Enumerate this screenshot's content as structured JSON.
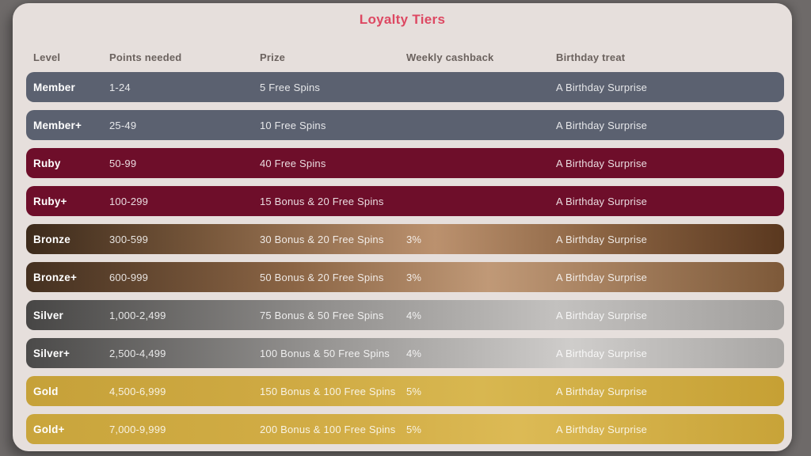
{
  "title": "Loyalty Tiers",
  "colors": {
    "background": "#6e6a69",
    "panel": "#e6dfdc",
    "title_accent": "#dd4862",
    "header_text": "#6b625e",
    "level_text": "#ffffff",
    "row_text": "#f2ece9"
  },
  "themes": {
    "member": {
      "background": "#5b6170"
    },
    "ruby": {
      "background": "#6e0e2a"
    },
    "bronze": {
      "background": "linear-gradient(90deg, #3c2a1b 0%, #7b5a3d 25%, #bb916e 54%, #8a6342 76%, #5a381f 100%)"
    },
    "bronze-plus": {
      "background": "linear-gradient(90deg, #443020 0%, #8a6444 35%, #c09977 61%, #7d5939 100%)"
    },
    "silver": {
      "background": "linear-gradient(90deg, #474645 0%, #8f8d8b 38%, #c3c1bf 70%, #a19f9d 100%)"
    },
    "silver-plus": {
      "background": "linear-gradient(90deg, #4b4a49 0%, #989694 40%, #cfcdcb 72%, #a8a6a4 100%)"
    },
    "gold": {
      "background": "linear-gradient(90deg, #c6a139 0%, #cfaa43 35%, #d8b750 60%, #c6a034 100%)"
    },
    "gold-plus": {
      "background": "linear-gradient(90deg, #c9a53c 0%, #d3ae47 45%, #dcba55 65%, #c8a338 100%)"
    }
  },
  "table": {
    "headers": [
      "Level",
      "Points needed",
      "Prize",
      "Weekly cashback",
      "Birthday treat"
    ],
    "rows": [
      {
        "level": "Member",
        "points": "1-24",
        "prize": "5 Free Spins",
        "cashback": "",
        "birthday": "A Birthday Surprise",
        "theme": "member"
      },
      {
        "level": "Member+",
        "points": "25-49",
        "prize": "10 Free Spins",
        "cashback": "",
        "birthday": "A Birthday Surprise",
        "theme": "member"
      },
      {
        "level": "Ruby",
        "points": "50-99",
        "prize": "40 Free Spins",
        "cashback": "",
        "birthday": "A Birthday Surprise",
        "theme": "ruby"
      },
      {
        "level": "Ruby+",
        "points": "100-299",
        "prize": "15 Bonus & 20 Free Spins",
        "cashback": "",
        "birthday": "A Birthday Surprise",
        "theme": "ruby"
      },
      {
        "level": "Bronze",
        "points": "300-599",
        "prize": "30 Bonus & 20 Free Spins",
        "cashback": "3%",
        "birthday": "A Birthday Surprise",
        "theme": "bronze"
      },
      {
        "level": "Bronze+",
        "points": "600-999",
        "prize": "50 Bonus & 20 Free Spins",
        "cashback": "3%",
        "birthday": "A Birthday Surprise",
        "theme": "bronze-plus"
      },
      {
        "level": "Silver",
        "points": "1,000-2,499",
        "prize": "75 Bonus & 50 Free Spins",
        "cashback": "4%",
        "birthday": "A Birthday Surprise",
        "theme": "silver"
      },
      {
        "level": "Silver+",
        "points": "2,500-4,499",
        "prize": "100 Bonus & 50 Free Spins",
        "cashback": "4%",
        "birthday": "A Birthday Surprise",
        "theme": "silver-plus"
      },
      {
        "level": "Gold",
        "points": "4,500-6,999",
        "prize": "150 Bonus & 100 Free Spins",
        "cashback": "5%",
        "birthday": "A Birthday Surprise",
        "theme": "gold"
      },
      {
        "level": "Gold+",
        "points": "7,000-9,999",
        "prize": "200 Bonus & 100 Free Spins",
        "cashback": "5%",
        "birthday": "A Birthday Surprise",
        "theme": "gold-plus"
      }
    ]
  }
}
